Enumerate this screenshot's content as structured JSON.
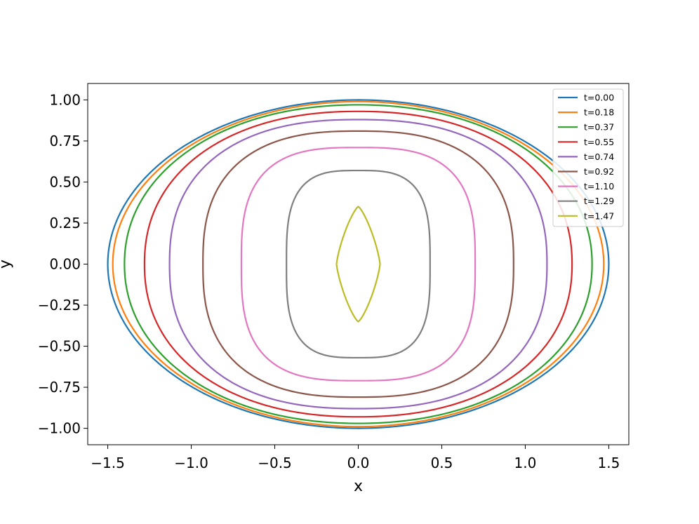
{
  "chart_data": {
    "type": "line",
    "title": "",
    "xlabel": "x",
    "ylabel": "y",
    "xlim": [
      -1.62,
      1.62
    ],
    "ylim": [
      -1.1,
      1.1
    ],
    "xticks": [
      -1.5,
      -1.0,
      -0.5,
      0.0,
      0.5,
      1.0,
      1.5
    ],
    "xtick_labels": [
      "−1.5",
      "−1.0",
      "−0.5",
      "0.0",
      "0.5",
      "1.0",
      "1.5"
    ],
    "yticks": [
      1.0,
      0.75,
      0.5,
      0.25,
      0.0,
      -0.25,
      -0.5,
      -0.75,
      -1.0
    ],
    "ytick_labels": [
      "1.00",
      "0.75",
      "0.50",
      "0.25",
      "0.00",
      "−0.25",
      "−0.50",
      "−0.75",
      "−1.00"
    ],
    "grid": false,
    "legend_position": "top-right",
    "series": [
      {
        "name": "t=0.00",
        "color": "#1f77b4",
        "a": 1.5,
        "b": 1.0,
        "shape": 2.0
      },
      {
        "name": "t=0.18",
        "color": "#ff7f0e",
        "a": 1.47,
        "b": 0.99,
        "shape": 2.0
      },
      {
        "name": "t=0.37",
        "color": "#2ca02c",
        "a": 1.4,
        "b": 0.97,
        "shape": 2.1
      },
      {
        "name": "t=0.55",
        "color": "#d62728",
        "a": 1.28,
        "b": 0.93,
        "shape": 2.2
      },
      {
        "name": "t=0.74",
        "color": "#9467bd",
        "a": 1.13,
        "b": 0.88,
        "shape": 2.4
      },
      {
        "name": "t=0.92",
        "color": "#8c564b",
        "a": 0.93,
        "b": 0.81,
        "shape": 2.6
      },
      {
        "name": "t=1.10",
        "color": "#e377c2",
        "a": 0.7,
        "b": 0.71,
        "shape": 3.0
      },
      {
        "name": "t=1.29",
        "color": "#7f7f7f",
        "a": 0.43,
        "b": 0.57,
        "shape": 3.2
      },
      {
        "name": "t=1.47",
        "color": "#bcbd22",
        "a": 0.13,
        "b": 0.35,
        "shape": 1.3
      }
    ]
  }
}
